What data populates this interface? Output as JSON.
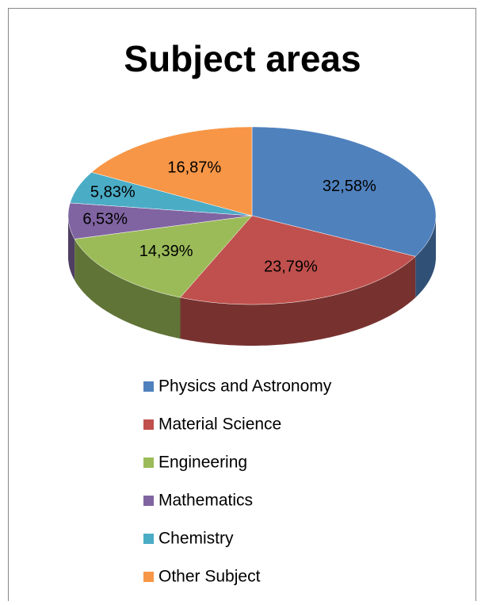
{
  "chart_data": {
    "type": "pie3d",
    "title": "Subject areas",
    "categories": [
      "Physics and Astronomy",
      "Material Science",
      "Engineering",
      "Mathematics",
      "Chemistry",
      "Other Subject"
    ],
    "values": [
      32.58,
      23.79,
      14.39,
      6.53,
      5.83,
      16.87
    ],
    "value_labels": [
      "32,58%",
      "23,79%",
      "14,39%",
      "6,53%",
      "5,83%",
      "16,87%"
    ],
    "colors": [
      "#4f81bd",
      "#c0504d",
      "#9bbb59",
      "#8064a2",
      "#4bacc6",
      "#f79646"
    ],
    "legend": "bottom"
  }
}
